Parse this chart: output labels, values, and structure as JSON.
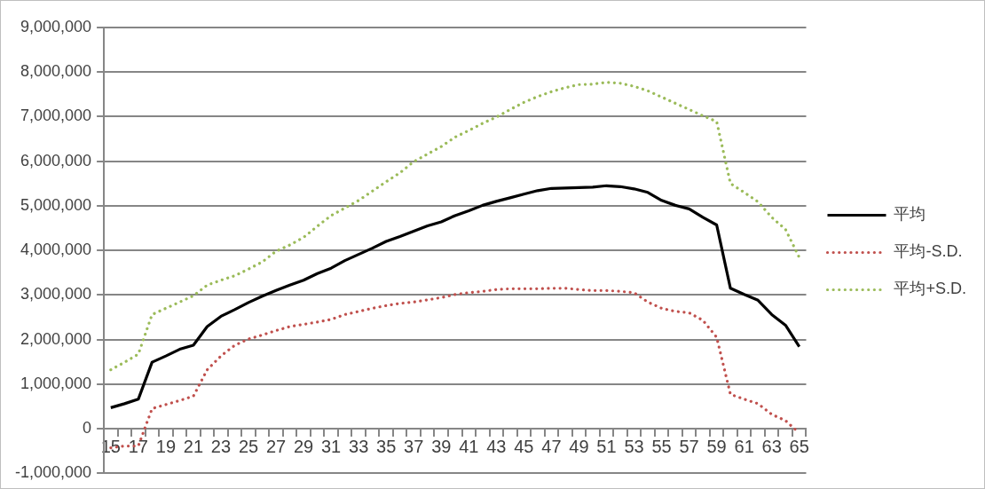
{
  "chart_data": {
    "type": "line",
    "categories": [
      "15",
      null,
      "17",
      null,
      "19",
      null,
      "21",
      null,
      "23",
      null,
      "25",
      null,
      "27",
      null,
      "29",
      null,
      "31",
      null,
      "33",
      null,
      "35",
      null,
      "37",
      null,
      "39",
      null,
      "41",
      null,
      "43",
      null,
      "45",
      null,
      "47",
      null,
      "49",
      null,
      "51",
      null,
      "53",
      null,
      "55",
      null,
      "57",
      null,
      "59",
      null,
      "61",
      null,
      "63",
      null,
      "65"
    ],
    "series": [
      {
        "name": "平均",
        "color": "#000000",
        "line_style": "solid",
        "values": [
          470000,
          560000,
          660000,
          1490000,
          1630000,
          1780000,
          1870000,
          2290000,
          2520000,
          2670000,
          2830000,
          2970000,
          3100000,
          3220000,
          3330000,
          3480000,
          3600000,
          3770000,
          3910000,
          4050000,
          4200000,
          4310000,
          4430000,
          4550000,
          4640000,
          4780000,
          4890000,
          5010000,
          5100000,
          5180000,
          5260000,
          5340000,
          5390000,
          5400000,
          5410000,
          5420000,
          5450000,
          5430000,
          5380000,
          5300000,
          5120000,
          5010000,
          4930000,
          4740000,
          4570000,
          3150000,
          3010000,
          2880000,
          2560000,
          2320000,
          1840000
        ]
      },
      {
        "name": "平均-S.D.",
        "color": "#c0504d",
        "line_style": "dotted",
        "values": [
          -430000,
          -390000,
          -390000,
          450000,
          540000,
          630000,
          730000,
          1320000,
          1630000,
          1870000,
          2010000,
          2100000,
          2200000,
          2290000,
          2340000,
          2390000,
          2450000,
          2560000,
          2630000,
          2700000,
          2760000,
          2810000,
          2840000,
          2890000,
          2940000,
          3010000,
          3050000,
          3080000,
          3120000,
          3140000,
          3140000,
          3140000,
          3150000,
          3150000,
          3120000,
          3100000,
          3100000,
          3080000,
          3050000,
          2840000,
          2700000,
          2630000,
          2600000,
          2430000,
          2050000,
          770000,
          660000,
          560000,
          320000,
          180000,
          -100000
        ]
      },
      {
        "name": "平均+S.D.",
        "color": "#9bbb59",
        "line_style": "dotted",
        "values": [
          1320000,
          1490000,
          1670000,
          2560000,
          2700000,
          2840000,
          2980000,
          3220000,
          3330000,
          3430000,
          3580000,
          3740000,
          3980000,
          4120000,
          4290000,
          4540000,
          4780000,
          4950000,
          5120000,
          5330000,
          5540000,
          5740000,
          5990000,
          6160000,
          6330000,
          6540000,
          6690000,
          6850000,
          6990000,
          7160000,
          7320000,
          7450000,
          7560000,
          7650000,
          7720000,
          7730000,
          7770000,
          7750000,
          7680000,
          7580000,
          7440000,
          7300000,
          7160000,
          7020000,
          6890000,
          5500000,
          5300000,
          5090000,
          4740000,
          4470000,
          3840000
        ]
      }
    ],
    "ylim": [
      -1000000,
      9000000
    ],
    "yticks": [
      {
        "value": -1000000,
        "label": "-1,000,000"
      },
      0,
      {
        "value": 1000000,
        "label": "1,000,000"
      },
      {
        "value": 2000000,
        "label": "2,000,000"
      },
      {
        "value": 3000000,
        "label": "3,000,000"
      },
      {
        "value": 4000000,
        "label": "4,000,000"
      },
      {
        "value": 5000000,
        "label": "5,000,000"
      },
      {
        "value": 6000000,
        "label": "6,000,000"
      },
      {
        "value": 7000000,
        "label": "7,000,000"
      },
      {
        "value": 8000000,
        "label": "8,000,000"
      },
      {
        "value": 9000000,
        "label": "9,000,000"
      }
    ],
    "grid": "y",
    "legend": "right",
    "marker": "none"
  }
}
